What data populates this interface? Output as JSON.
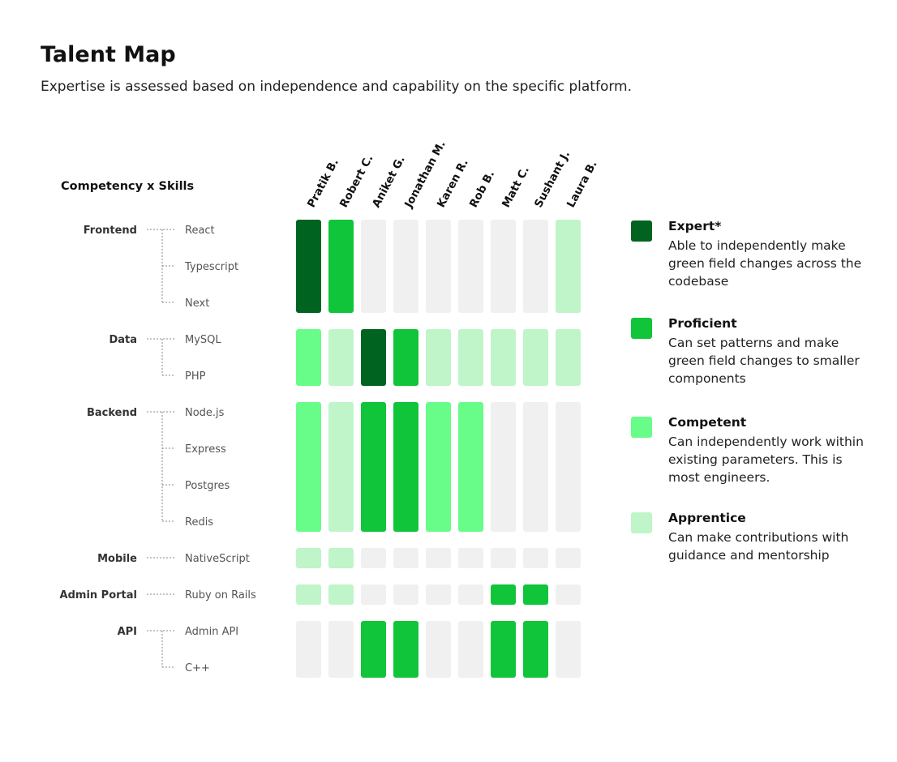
{
  "header": {
    "title": "Talent Map",
    "subtitle": "Expertise is assessed based on independence and capability on the specific platform."
  },
  "chart_data": {
    "type": "heatmap",
    "title": "Talent Map",
    "axis_title": "Competency x Skills",
    "people": [
      "Pratik B.",
      "Robert C.",
      "Aniket G.",
      "Jonathan M.",
      "Karen R.",
      "Rob B.",
      "Matt C.",
      "Sushant J.",
      "Laura B."
    ],
    "levels": {
      "expert": "#006420",
      "proficient": "#10c53a",
      "competent": "#68fd88",
      "apprentice": "#bff5c8",
      "none": "#f0f0f0"
    },
    "groups": [
      {
        "name": "Frontend",
        "skills": [
          "React",
          "Typescript",
          "Next"
        ],
        "ratings": [
          "expert",
          "proficient",
          "none",
          "none",
          "none",
          "none",
          "none",
          "none",
          "apprentice"
        ]
      },
      {
        "name": "Data",
        "skills": [
          "MySQL",
          "PHP"
        ],
        "ratings": [
          "competent",
          "apprentice",
          "expert",
          "proficient",
          "apprentice",
          "apprentice",
          "apprentice",
          "apprentice",
          "apprentice"
        ]
      },
      {
        "name": "Backend",
        "skills": [
          "Node.js",
          "Express",
          "Postgres",
          "Redis"
        ],
        "ratings": [
          "competent",
          "apprentice",
          "proficient",
          "proficient",
          "competent",
          "competent",
          "none",
          "none",
          "none"
        ]
      },
      {
        "name": "Mobile",
        "skills": [
          "NativeScript"
        ],
        "ratings": [
          "apprentice",
          "apprentice",
          "none",
          "none",
          "none",
          "none",
          "none",
          "none",
          "none"
        ]
      },
      {
        "name": "Admin Portal",
        "skills": [
          "Ruby on Rails"
        ],
        "ratings": [
          "apprentice",
          "apprentice",
          "none",
          "none",
          "none",
          "none",
          "proficient",
          "proficient",
          "none"
        ]
      },
      {
        "name": "API",
        "skills": [
          "Admin API",
          "C++"
        ],
        "ratings": [
          "none",
          "none",
          "proficient",
          "proficient",
          "none",
          "none",
          "proficient",
          "proficient",
          "none"
        ]
      }
    ]
  },
  "legend": {
    "items": [
      {
        "key": "expert",
        "name": "Expert*",
        "description": "Able to independently make green field changes across the codebase"
      },
      {
        "key": "proficient",
        "name": "Proficient",
        "description": "Can set patterns and make green field changes to smaller components"
      },
      {
        "key": "competent",
        "name": "Competent",
        "description": "Can independently work within existing parameters. This is most engineers."
      },
      {
        "key": "apprentice",
        "name": "Apprentice",
        "description": "Can make contributions with guidance and mentorship"
      }
    ]
  }
}
